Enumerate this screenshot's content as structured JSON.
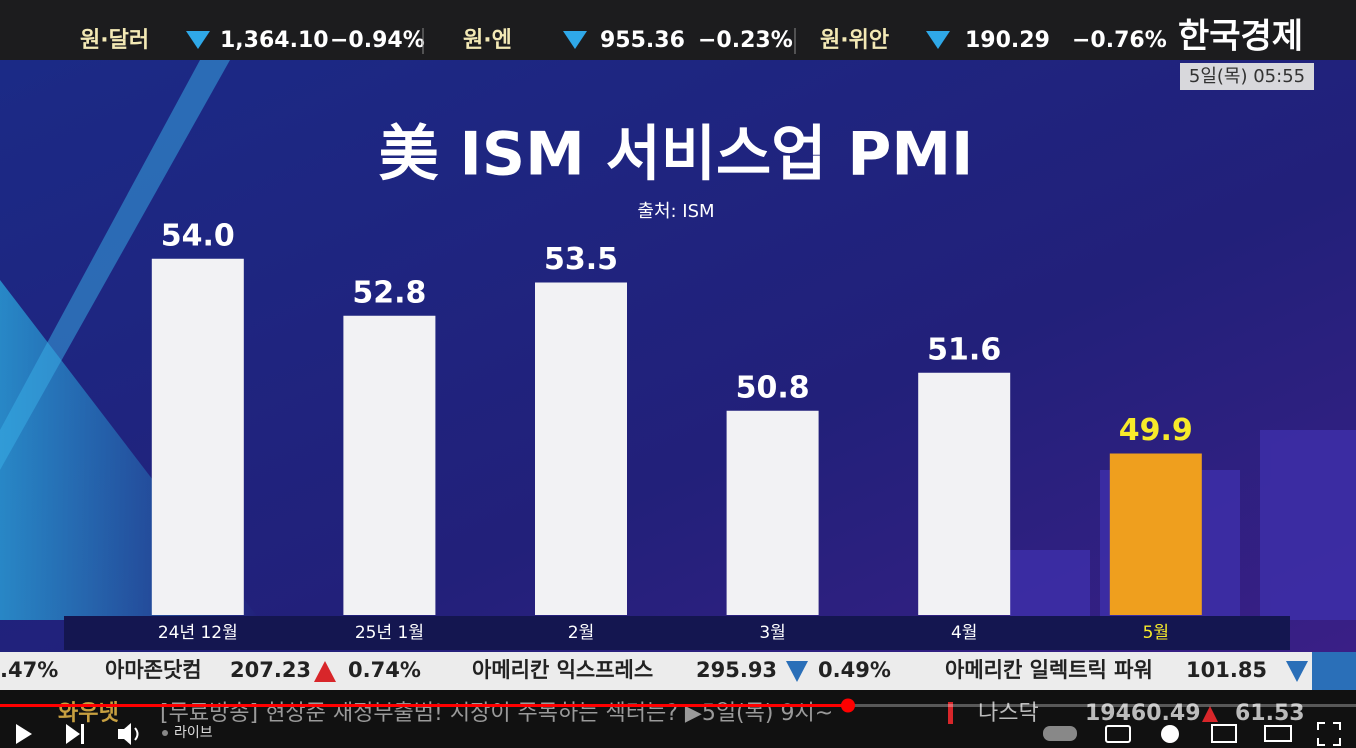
{
  "ticker_top": {
    "items": [
      {
        "name": "원·달러",
        "value": "1,364.10",
        "change": "−0.94%"
      },
      {
        "name": "원·엔",
        "value": "955.36",
        "change": "−0.23%"
      },
      {
        "name": "원·위안",
        "value": "190.29",
        "change": "−0.76%"
      }
    ]
  },
  "logo": "한국경제",
  "datetime": "5일(목) 05:55",
  "chart_data": {
    "type": "bar",
    "title": "美 ISM 서비스업 PMI",
    "subtitle": "출처: ISM",
    "categories": [
      "24년 12월",
      "25년 1월",
      "2월",
      "3월",
      "4월",
      "5월"
    ],
    "values": [
      54.0,
      52.8,
      53.5,
      50.8,
      51.6,
      49.9
    ],
    "value_labels": [
      "54.0",
      "52.8",
      "53.5",
      "50.8",
      "51.6",
      "49.9"
    ],
    "colors": [
      "#f2f2f4",
      "#f2f2f4",
      "#f2f2f4",
      "#f2f2f4",
      "#f2f2f4",
      "#ef9f1e"
    ],
    "label_colors": [
      "#ffffff",
      "#ffffff",
      "#ffffff",
      "#ffffff",
      "#ffffff",
      "#f7ea2a"
    ],
    "category_colors": [
      "#ffffff",
      "#ffffff",
      "#ffffff",
      "#ffffff",
      "#ffffff",
      "#f7ea2a"
    ],
    "ylim": [
      46.5,
      55.5
    ]
  },
  "ticker_bottom": {
    "items": [
      {
        "change": ".47%"
      },
      {
        "name": "아마존닷컴",
        "value": "207.23",
        "change": "0.74%"
      },
      {
        "name": "아메리칸 익스프레스",
        "value": "295.93",
        "change": "0.49%"
      },
      {
        "name": "아메리칸 일렉트릭 파워",
        "value": "101.85"
      }
    ]
  },
  "news_bar": {
    "label": "와우넷",
    "headline": "[무료방송] 현상준 재정부출범! 시장이 주목하는 섹터는? ▶5일(목) 9시~",
    "index_name": "나스닥",
    "index_value": "19460.49",
    "index_change": "61.53"
  },
  "player": {
    "live_label": "라이브"
  }
}
